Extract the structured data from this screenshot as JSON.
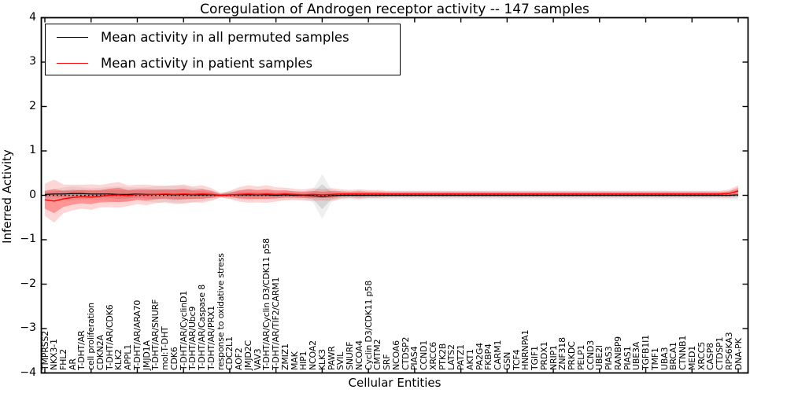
{
  "figure": {
    "title": "Coregulation of Androgen receptor activity -- 147 samples",
    "xlabel": "Cellular Entities",
    "ylabel": "Inferred Activity",
    "legend": {
      "entries": [
        {
          "label": "Mean activity in all permuted samples",
          "color": "#000000"
        },
        {
          "label": "Mean activity in patient samples",
          "color": "#ff0000"
        }
      ]
    }
  },
  "chart_data": {
    "type": "line",
    "title": "Coregulation of Androgen receptor activity -- 147 samples",
    "xlabel": "Cellular Entities",
    "ylabel": "Inferred Activity",
    "ylim": [
      -4,
      4
    ],
    "ytick_labels": [
      "4",
      "3",
      "2",
      "1",
      "0",
      "−1",
      "−2",
      "−3",
      "−4"
    ],
    "ytick_values": [
      4,
      3,
      2,
      1,
      0,
      -1,
      -2,
      -3,
      -4
    ],
    "grid": false,
    "legend_position": "upper left",
    "zero_line": {
      "y": 0,
      "style": "dotted",
      "color": "#000000"
    },
    "band_outer_scale": 1.8,
    "categories": [
      "TMPRSS2",
      "NKX3-1",
      "FHL2",
      "AR",
      "T-DHT/AR",
      "cell proliferation",
      "CDKN2A",
      "T-DHT/AR/CDK6",
      "KLK2",
      "APPL1",
      "T-DHT/AR/ARA70",
      "JMJD1A",
      "T-DHT/AR/SNURF",
      "mol:T-DHT",
      "CDK6",
      "T-DHT/AR/CyclinD1",
      "T-DHT/AR/Ubc9",
      "T-DHT/AR/Caspase 8",
      "T-DHT/AR/PRX1",
      "response to oxidative stress",
      "CDC2L1",
      "AOF2",
      "JMJD2C",
      "VAV3",
      "T-DHT/AR/Cyclin D3/CDK11 p58",
      "T-DHT/AR/TIF2/CARM1",
      "ZMIZ1",
      "MAK",
      "HIP1",
      "NCOA2",
      "KLK3",
      "PAWR",
      "SVIL",
      "SNURF",
      "NCOA4",
      "Cyclin D3/CDK11 p58",
      "CMTM2",
      "SRF",
      "NCOA6",
      "CTDSP2",
      "PIAS4",
      "CCND1",
      "XRCC6",
      "PTK2B",
      "LATS2",
      "PATZ1",
      "AKT1",
      "PA2G4",
      "FKBP4",
      "CARM1",
      "GSN",
      "TCF4",
      "HNRNPA1",
      "TGIF1",
      "PRDX1",
      "NRIP1",
      "ZNF318",
      "PRKDC",
      "PELP1",
      "CCND3",
      "UBE2I",
      "PIAS3",
      "RANBP9",
      "PIAS1",
      "UBE3A",
      "TGFB1I1",
      "TMF1",
      "UBA3",
      "BRCA1",
      "CTNNB1",
      "MED1",
      "XRCC5",
      "CASP8",
      "CTDSP1",
      "RPS6KA3",
      "DNA-PK"
    ],
    "series": [
      {
        "name": "Mean activity in all permuted samples",
        "color": "#000000",
        "band_color": "#808080",
        "values": [
          0.02,
          0.03,
          0.03,
          0.04,
          0.04,
          0.03,
          0.03,
          0.03,
          0.02,
          0.02,
          0.03,
          0.02,
          0.02,
          0.02,
          0.01,
          0.02,
          0.01,
          0.01,
          0.01,
          0.0,
          0.01,
          0.01,
          0.01,
          0.01,
          0.01,
          0.0,
          0.01,
          0.0,
          0.0,
          -0.01,
          -0.03,
          -0.01,
          0.0,
          0.0,
          0.0,
          0.0,
          0.0,
          0.0,
          0.0,
          0.0,
          0.0,
          0.0,
          0.0,
          0.0,
          0.0,
          0.0,
          0.0,
          0.0,
          0.0,
          0.0,
          0.0,
          0.0,
          0.0,
          0.0,
          0.0,
          0.0,
          0.0,
          0.0,
          0.0,
          0.0,
          0.0,
          0.0,
          0.0,
          0.0,
          0.0,
          0.0,
          0.0,
          0.0,
          0.0,
          0.0,
          0.0,
          0.0,
          0.0,
          0.0,
          0.0,
          0.01
        ],
        "band_halfwidth": [
          0.05,
          0.06,
          0.08,
          0.09,
          0.08,
          0.07,
          0.08,
          0.09,
          0.1,
          0.09,
          0.08,
          0.09,
          0.1,
          0.11,
          0.12,
          0.11,
          0.09,
          0.08,
          0.06,
          0.03,
          0.05,
          0.06,
          0.07,
          0.06,
          0.06,
          0.05,
          0.06,
          0.05,
          0.05,
          0.08,
          0.28,
          0.08,
          0.05,
          0.05,
          0.06,
          0.05,
          0.05,
          0.05,
          0.05,
          0.05,
          0.05,
          0.05,
          0.05,
          0.05,
          0.05,
          0.05,
          0.05,
          0.05,
          0.05,
          0.05,
          0.05,
          0.05,
          0.05,
          0.05,
          0.05,
          0.05,
          0.05,
          0.05,
          0.05,
          0.05,
          0.05,
          0.05,
          0.05,
          0.05,
          0.05,
          0.05,
          0.05,
          0.05,
          0.05,
          0.05,
          0.05,
          0.05,
          0.05,
          0.05,
          0.05,
          0.06
        ]
      },
      {
        "name": "Mean activity in patient samples",
        "color": "#ff0000",
        "band_color": "#ff0000",
        "values": [
          -0.1,
          -0.13,
          -0.08,
          -0.05,
          -0.03,
          -0.04,
          -0.02,
          0.0,
          0.01,
          -0.01,
          0.02,
          0.01,
          0.02,
          0.03,
          0.02,
          0.03,
          0.02,
          0.03,
          0.02,
          0.0,
          0.01,
          0.02,
          0.03,
          0.02,
          0.03,
          0.02,
          0.03,
          0.02,
          0.01,
          0.02,
          0.01,
          0.02,
          0.03,
          0.03,
          0.03,
          0.03,
          0.03,
          0.03,
          0.03,
          0.03,
          0.03,
          0.03,
          0.03,
          0.03,
          0.03,
          0.03,
          0.03,
          0.03,
          0.03,
          0.03,
          0.03,
          0.03,
          0.03,
          0.03,
          0.03,
          0.03,
          0.03,
          0.03,
          0.03,
          0.03,
          0.03,
          0.03,
          0.03,
          0.03,
          0.03,
          0.03,
          0.03,
          0.03,
          0.03,
          0.03,
          0.03,
          0.03,
          0.03,
          0.03,
          0.04,
          0.1
        ],
        "band_halfwidth": [
          0.2,
          0.27,
          0.18,
          0.16,
          0.15,
          0.16,
          0.14,
          0.15,
          0.16,
          0.13,
          0.12,
          0.13,
          0.11,
          0.1,
          0.11,
          0.12,
          0.1,
          0.11,
          0.08,
          0.03,
          0.05,
          0.09,
          0.11,
          0.1,
          0.11,
          0.09,
          0.08,
          0.07,
          0.07,
          0.08,
          0.07,
          0.08,
          0.06,
          0.05,
          0.06,
          0.05,
          0.05,
          0.04,
          0.04,
          0.04,
          0.04,
          0.04,
          0.04,
          0.04,
          0.04,
          0.04,
          0.04,
          0.04,
          0.04,
          0.04,
          0.04,
          0.04,
          0.04,
          0.04,
          0.04,
          0.04,
          0.04,
          0.04,
          0.04,
          0.04,
          0.04,
          0.04,
          0.04,
          0.04,
          0.04,
          0.04,
          0.04,
          0.04,
          0.04,
          0.04,
          0.04,
          0.04,
          0.04,
          0.04,
          0.05,
          0.07
        ]
      }
    ]
  }
}
